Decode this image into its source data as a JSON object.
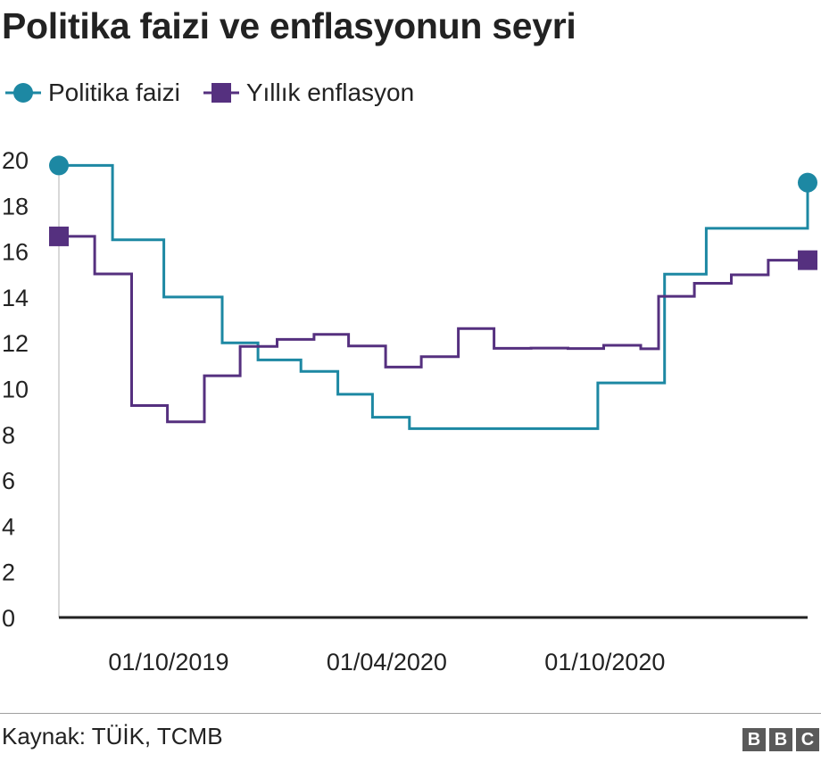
{
  "header": {
    "title": "Politika faizi ve enflasyonun seyri"
  },
  "legend": [
    {
      "label": "Politika faizi",
      "color": "#1D88A3",
      "marker": "circle"
    },
    {
      "label": "Yıllık enflasyon",
      "color": "#55307F",
      "marker": "square"
    }
  ],
  "footer": {
    "source": "Kaynak: TÜİK, TCMB",
    "logo_letters": [
      "B",
      "B",
      "C"
    ]
  },
  "chart_data": {
    "type": "line",
    "step": true,
    "ylim": [
      0,
      20
    ],
    "yticks": [
      0,
      2,
      4,
      6,
      8,
      10,
      12,
      14,
      16,
      18,
      20
    ],
    "x_tick_labels": [
      "01/10/2019",
      "01/04/2020",
      "01/10/2020"
    ],
    "grid": false,
    "legend_position": "top-left",
    "series": [
      {
        "name": "Politika faizi",
        "color": "#1D88A3",
        "marker": "circle",
        "data": [
          [
            "2019-07-01",
            19.75
          ],
          [
            "2019-08-15",
            16.5
          ],
          [
            "2019-09-27",
            14.0
          ],
          [
            "2019-11-15",
            12.0
          ],
          [
            "2019-12-15",
            11.25
          ],
          [
            "2020-01-20",
            10.75
          ],
          [
            "2020-02-20",
            9.75
          ],
          [
            "2020-03-20",
            8.75
          ],
          [
            "2020-04-20",
            8.25
          ],
          [
            "2020-09-25",
            10.25
          ],
          [
            "2020-11-20",
            15.0
          ],
          [
            "2020-12-25",
            17.0
          ],
          [
            "2021-03-20",
            19.0
          ]
        ]
      },
      {
        "name": "Yıllık enflasyon",
        "color": "#55307F",
        "marker": "square",
        "data": [
          [
            "2019-07-01",
            16.65
          ],
          [
            "2019-07-31",
            15.01
          ],
          [
            "2019-08-31",
            9.26
          ],
          [
            "2019-09-30",
            8.55
          ],
          [
            "2019-10-31",
            10.56
          ],
          [
            "2019-11-30",
            11.84
          ],
          [
            "2019-12-31",
            12.15
          ],
          [
            "2020-01-31",
            12.37
          ],
          [
            "2020-02-29",
            11.86
          ],
          [
            "2020-03-31",
            10.94
          ],
          [
            "2020-04-30",
            11.39
          ],
          [
            "2020-05-31",
            12.62
          ],
          [
            "2020-06-30",
            11.76
          ],
          [
            "2020-07-31",
            11.77
          ],
          [
            "2020-08-31",
            11.75
          ],
          [
            "2020-09-30",
            11.89
          ],
          [
            "2020-10-31",
            11.74
          ],
          [
            "2020-11-15",
            14.03
          ],
          [
            "2020-12-15",
            14.6
          ],
          [
            "2021-01-15",
            14.97
          ],
          [
            "2021-02-15",
            15.61
          ],
          [
            "2021-03-20",
            15.61
          ]
        ]
      }
    ]
  }
}
